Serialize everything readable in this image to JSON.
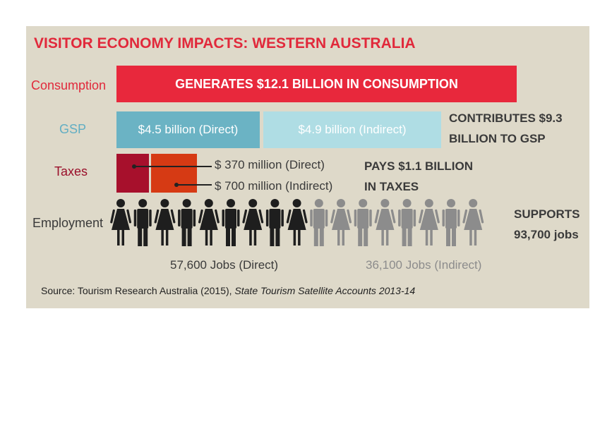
{
  "title": "VISITOR ECONOMY IMPACTS: WESTERN AUSTRALIA",
  "colors": {
    "consumption": "#e8283c",
    "gsp_direct": "#6bb3c4",
    "gsp_indirect": "#afdde4",
    "tax_direct": "#a7102c",
    "tax_indirect": "#d63a14",
    "jobs_direct": "#1e1e1e",
    "jobs_indirect": "#8c8c8c"
  },
  "rows": {
    "consumption": {
      "label": "Consumption",
      "bar_text": "GENERATES $12.1 BILLION IN CONSUMPTION"
    },
    "gsp": {
      "label": "GSP",
      "direct_text": "$4.5 billion (Direct)",
      "indirect_text": "$4.9 billion (Indirect)",
      "summary_line1": "CONTRIBUTES $9.3",
      "summary_line2": "BILLION TO GSP"
    },
    "taxes": {
      "label": "Taxes",
      "direct_text": "$ 370 million (Direct)",
      "indirect_text": "$ 700 million (Indirect)",
      "summary_line1": "PAYS $1.1 BILLION",
      "summary_line2": "IN TAXES"
    },
    "employment": {
      "label": "Employment",
      "direct_text": "57,600 Jobs (Direct)",
      "indirect_text": "36,100 Jobs (Indirect)",
      "summary_line1": "SUPPORTS",
      "summary_line2": "93,700 jobs"
    }
  },
  "source": {
    "prefix": "Source: Tourism Research Australia (2015), ",
    "title": "State Tourism Satellite Accounts 2013-14"
  },
  "chart_data": {
    "type": "bar",
    "units": "AUD billions",
    "consumption": {
      "total": 12.1
    },
    "gsp": {
      "direct": 4.5,
      "indirect": 4.9,
      "total": 9.3
    },
    "taxes": {
      "direct": 0.37,
      "indirect": 0.7,
      "total": 1.1
    },
    "employment": {
      "direct_jobs": 57600,
      "indirect_jobs": 36100,
      "total_jobs": 93700,
      "icons_direct": 9,
      "icons_indirect": 8
    }
  }
}
